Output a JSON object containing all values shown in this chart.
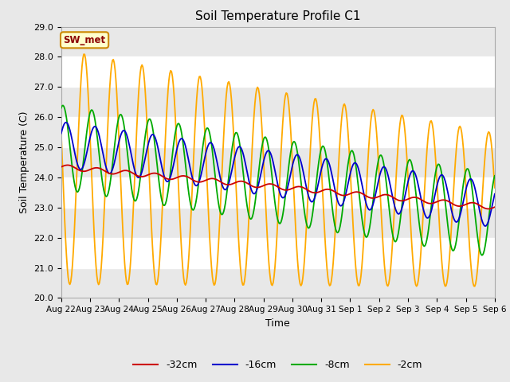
{
  "title": "Soil Temperature Profile C1",
  "xlabel": "Time",
  "ylabel": "Soil Temperature (C)",
  "ylim": [
    20.0,
    29.0
  ],
  "yticks": [
    20.0,
    21.0,
    22.0,
    23.0,
    24.0,
    25.0,
    26.0,
    27.0,
    28.0,
    29.0
  ],
  "x_labels": [
    "Aug 22",
    "Aug 23",
    "Aug 24",
    "Aug 25",
    "Aug 26",
    "Aug 27",
    "Aug 28",
    "Aug 29",
    "Aug 30",
    "Aug 31",
    "Sep 1",
    "Sep 2",
    "Sep 3",
    "Sep 4",
    "Sep 5",
    "Sep 6"
  ],
  "legend_label": "SW_met",
  "series_labels": [
    "-32cm",
    "-16cm",
    "-8cm",
    "-2cm"
  ],
  "series_colors": [
    "#cc0000",
    "#0000cc",
    "#00aa00",
    "#ffaa00"
  ],
  "legend_text_color": "#8b0000",
  "legend_box_facecolor": "#ffffcc",
  "legend_box_edgecolor": "#cc8800",
  "fig_facecolor": "#e8e8e8",
  "ax_facecolor": "#ffffff",
  "band_color": "#e8e8e8",
  "grid_color": "#cccccc"
}
